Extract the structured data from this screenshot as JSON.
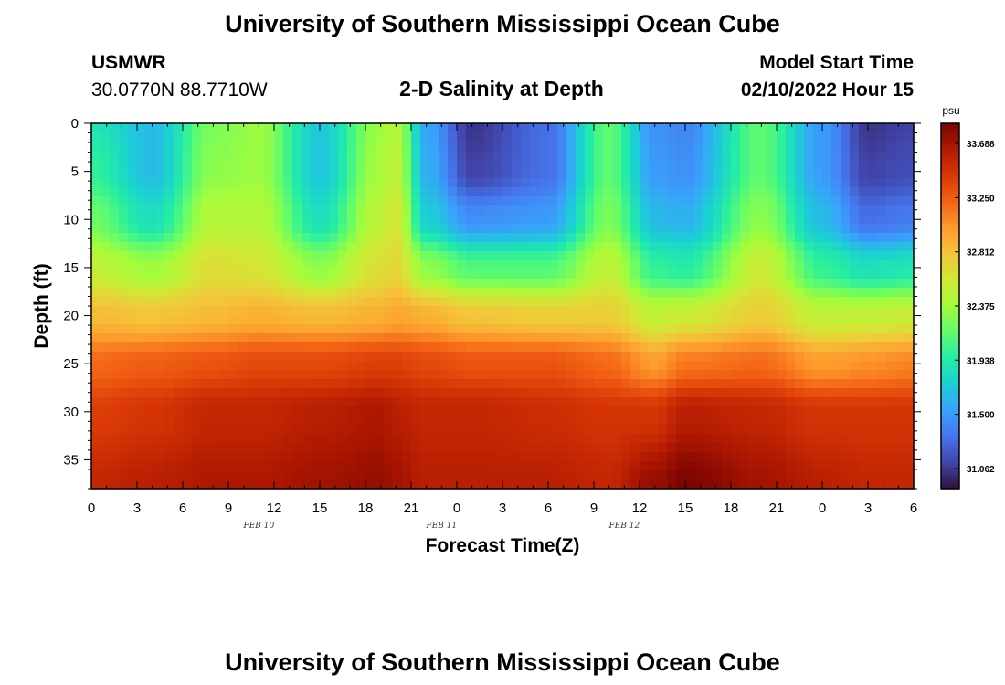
{
  "header": {
    "title": "University of Southern Mississippi Ocean Cube",
    "station": "USMWR",
    "coords": "30.0770N  88.7710W",
    "subtitle": "2-D Salinity at Depth",
    "model_label": "Model Start Time",
    "model_time": "02/10/2022 Hour 15"
  },
  "footer": {
    "title": "University of Southern Mississippi Ocean Cube"
  },
  "chart_data": {
    "type": "heatmap",
    "xlabel": "Forecast Time(Z)",
    "ylabel": "Depth (ft)",
    "x_ticks": [
      "0",
      "3",
      "6",
      "9",
      "12",
      "15",
      "18",
      "21",
      "0",
      "3",
      "6",
      "9",
      "12",
      "15",
      "18",
      "21",
      "0",
      "3",
      "6"
    ],
    "date_labels": [
      {
        "label": "FEB 10",
        "hour_index": 21
      },
      {
        "label": "FEB 11",
        "hour_index": 45
      },
      {
        "label": "FEB 12",
        "hour_index": 69
      }
    ],
    "x_range_hours": [
      0,
      54
    ],
    "y_ticks": [
      0,
      5,
      10,
      15,
      20,
      25,
      30,
      35
    ],
    "y_range": [
      0,
      38
    ],
    "y_inverted": true,
    "colorbar": {
      "unit": "psu",
      "tick_labels": [
        "33.688",
        "33.250",
        "32.812",
        "32.375",
        "31.938",
        "31.500",
        "31.062"
      ],
      "range": [
        30.9,
        33.85
      ],
      "colors": [
        "#30123b",
        "#4145ab",
        "#4675ed",
        "#39a2fc",
        "#1bcfd4",
        "#24eca6",
        "#61fc6c",
        "#a4fc3b",
        "#d1e834",
        "#f3c63a",
        "#fe9b2d",
        "#f36315",
        "#d93806",
        "#b11901",
        "#7a0402"
      ]
    },
    "profiles": {
      "hours": [
        0,
        4,
        8,
        11,
        15,
        19,
        20,
        22,
        25,
        30,
        34,
        37,
        39,
        44,
        48,
        51,
        54
      ],
      "columns": [
        [
          31.9,
          32.0,
          32.2,
          32.5,
          32.85,
          33.2,
          33.4,
          33.55
        ],
        [
          31.65,
          31.65,
          31.85,
          32.35,
          32.8,
          33.25,
          33.45,
          33.6
        ],
        [
          32.25,
          32.3,
          32.45,
          32.65,
          32.85,
          33.3,
          33.55,
          33.65
        ],
        [
          32.35,
          32.35,
          32.45,
          32.6,
          32.9,
          33.35,
          33.55,
          33.65
        ],
        [
          31.7,
          31.7,
          31.85,
          32.3,
          32.85,
          33.35,
          33.6,
          33.7
        ],
        [
          32.35,
          32.4,
          32.5,
          32.65,
          32.9,
          33.4,
          33.65,
          33.75
        ],
        [
          32.45,
          32.5,
          32.6,
          32.7,
          32.95,
          33.4,
          33.6,
          33.7
        ],
        [
          31.55,
          31.6,
          31.75,
          32.3,
          32.9,
          33.35,
          33.55,
          33.6
        ],
        [
          31.05,
          31.1,
          31.45,
          32.1,
          32.8,
          33.3,
          33.55,
          33.6
        ],
        [
          31.3,
          31.3,
          31.5,
          32.1,
          32.75,
          33.3,
          33.5,
          33.6
        ],
        [
          32.15,
          32.15,
          32.25,
          32.5,
          32.75,
          33.2,
          33.45,
          33.55
        ],
        [
          31.45,
          31.5,
          31.65,
          32.0,
          32.5,
          33.0,
          33.45,
          33.75
        ],
        [
          31.4,
          31.45,
          31.6,
          31.95,
          32.55,
          33.15,
          33.6,
          33.85
        ],
        [
          32.15,
          32.15,
          32.3,
          32.55,
          32.75,
          33.2,
          33.55,
          33.7
        ],
        [
          31.5,
          31.5,
          31.65,
          32.0,
          32.5,
          33.0,
          33.45,
          33.6
        ],
        [
          31.05,
          31.1,
          31.3,
          31.85,
          32.5,
          33.05,
          33.45,
          33.55
        ],
        [
          31.1,
          31.15,
          31.35,
          31.9,
          32.55,
          33.1,
          33.45,
          33.55
        ]
      ]
    }
  }
}
